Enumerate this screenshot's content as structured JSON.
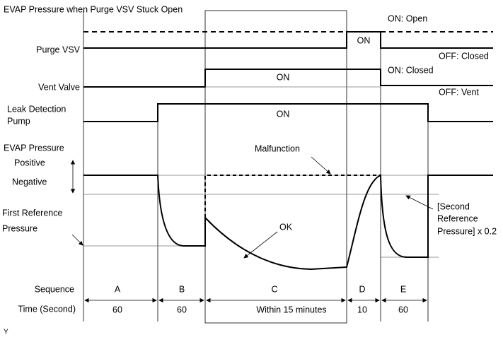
{
  "title": "EVAP Pressure when Purge VSV Stuck Open",
  "purge_vsv": {
    "label": "Purge VSV",
    "on_state": "ON: Open",
    "off_state": "OFF: Closed",
    "on": "ON"
  },
  "vent_valve": {
    "label": "Vent Valve",
    "on_state": "ON: Closed",
    "off_state": "OFF: Vent",
    "on": "ON"
  },
  "pump": {
    "label_lines": [
      "Leak Detection",
      "Pump"
    ],
    "on": "ON"
  },
  "pressure": {
    "label": "EVAP Pressure",
    "positive": "Positive",
    "negative": "Negative",
    "first_reference": [
      "First Reference",
      "Pressure"
    ],
    "second_reference": [
      "[Second",
      "Reference",
      "Pressure] x 0.2"
    ],
    "malfunction": "Malfunction",
    "ok": "OK"
  },
  "sequence": {
    "label": "Sequence",
    "steps": [
      "A",
      "B",
      "C",
      "D",
      "E"
    ]
  },
  "time": {
    "label": "Time (Second)",
    "durations": [
      "60",
      "60",
      "Within 15 minutes",
      "10",
      "60"
    ]
  },
  "footer": "Y"
}
